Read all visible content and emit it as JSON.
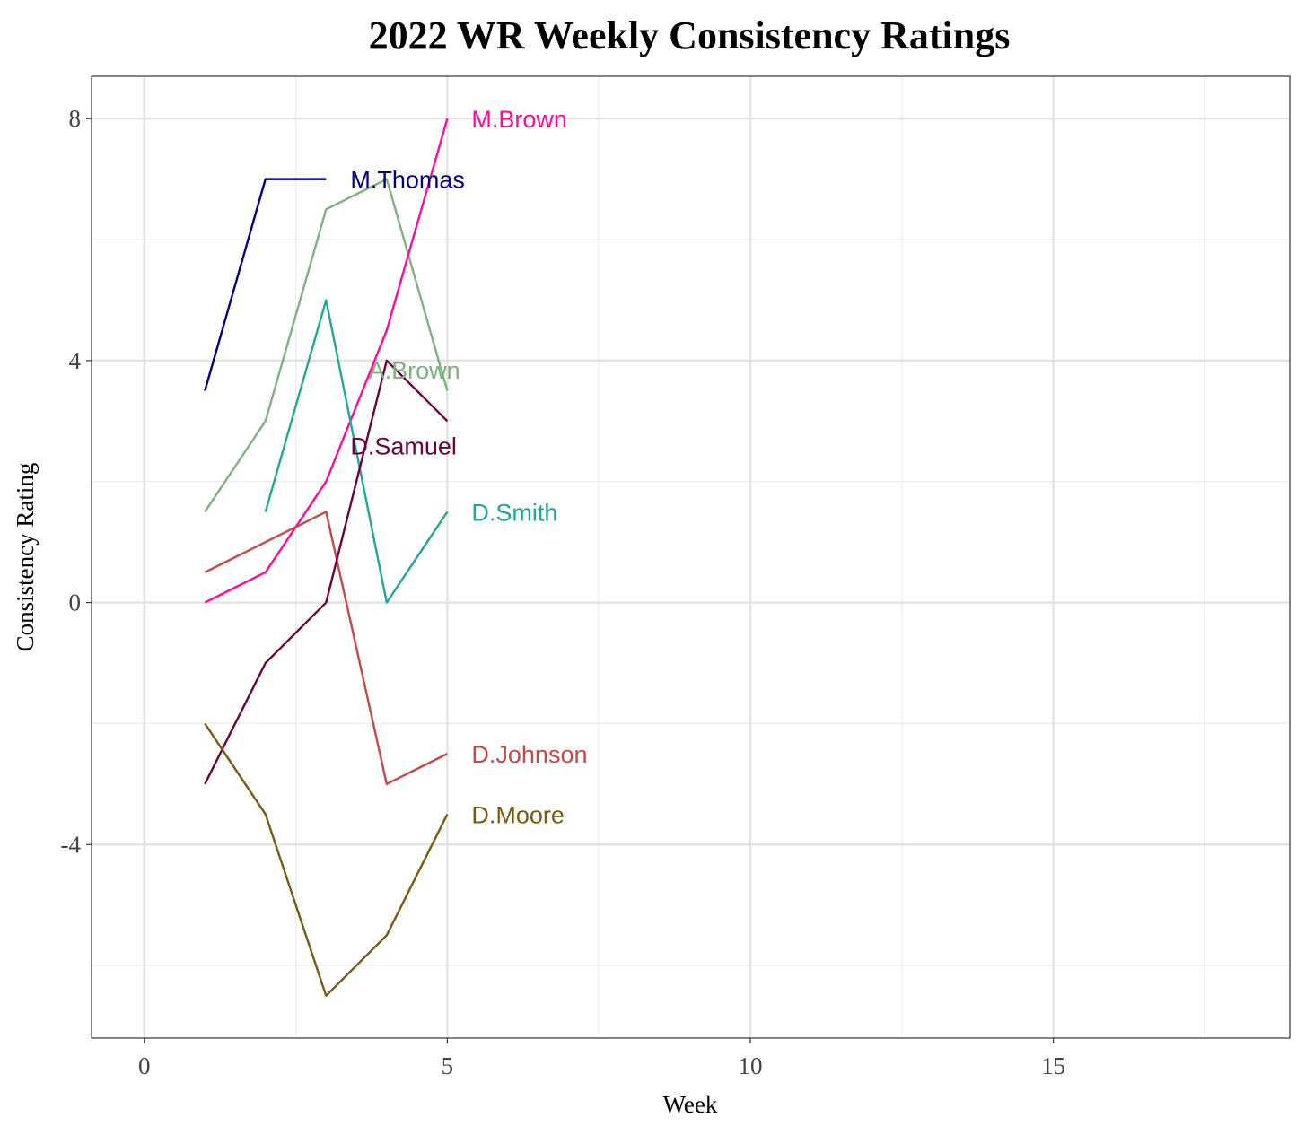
{
  "chart_data": {
    "type": "line",
    "title": "2022 WR Weekly Consistency Ratings",
    "xlabel": "Week",
    "ylabel": "Consistency Rating",
    "xlim": [
      -0.87,
      18.9
    ],
    "ylim": [
      -7.2,
      8.7
    ],
    "x_ticks": [
      0,
      5,
      10,
      15
    ],
    "x_minor": [
      2.5,
      7.5,
      12.5,
      17.5
    ],
    "y_ticks": [
      -4,
      0,
      4,
      8
    ],
    "y_minor": [
      -6,
      -2,
      2,
      6
    ],
    "grid": true,
    "legend": "none (direct labels)",
    "series": [
      {
        "name": "M.Thomas",
        "color": "#000080",
        "x": [
          1,
          2,
          3
        ],
        "y": [
          3.5,
          7,
          7
        ],
        "label_at": [
          3.4,
          7
        ]
      },
      {
        "name": "A.Brown",
        "color": "#7fb27f",
        "x": [
          1,
          2,
          3,
          4,
          5
        ],
        "y": [
          1.5,
          3,
          6.5,
          7,
          3.5
        ],
        "label_at": [
          3.7,
          3.85
        ]
      },
      {
        "name": "M.Brown",
        "color": "#ff0aa0",
        "x": [
          1,
          2,
          3,
          4,
          5
        ],
        "y": [
          0,
          0.5,
          2,
          4.5,
          8
        ],
        "label_at": [
          5.4,
          8
        ]
      },
      {
        "name": "D.Smith",
        "color": "#1fa898",
        "x": [
          2,
          3,
          4,
          5
        ],
        "y": [
          1.5,
          5,
          0,
          1.5
        ],
        "label_at": [
          5.4,
          1.5
        ]
      },
      {
        "name": "D.Johnson",
        "color": "#c84848",
        "x": [
          1,
          2,
          3,
          4,
          5
        ],
        "y": [
          0.5,
          1,
          1.5,
          -3,
          -2.5
        ],
        "label_at": [
          5.4,
          -2.5
        ]
      },
      {
        "name": "D.Samuel",
        "color": "#6e0040",
        "x": [
          1,
          2,
          3,
          4,
          5
        ],
        "y": [
          -3,
          -1,
          0,
          4,
          3
        ],
        "label_at": [
          3.4,
          2.6
        ]
      },
      {
        "name": "D.Moore",
        "color": "#7a5a10",
        "x": [
          1,
          2,
          3,
          4,
          5
        ],
        "y": [
          -2,
          -3.5,
          -6.5,
          -5.5,
          -3.5
        ],
        "label_at": [
          5.4,
          -3.5
        ]
      }
    ]
  }
}
